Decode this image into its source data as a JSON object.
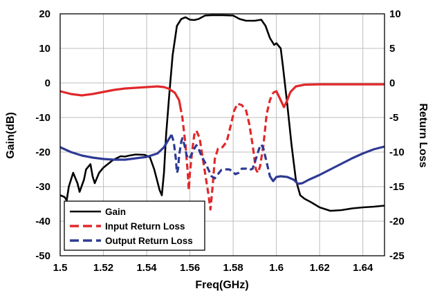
{
  "chart_data": {
    "type": "line",
    "title": "",
    "xlabel": "Freq(GHz)",
    "ylabel_left": "Gain(dB)",
    "ylabel_right": "Return Loss",
    "xlim": [
      1.5,
      1.65
    ],
    "ylim_left": [
      -50,
      20
    ],
    "ylim_right": [
      -25,
      10
    ],
    "x_ticks": [
      "1.5",
      "1.52",
      "1.54",
      "1.56",
      "1.58",
      "1.6",
      "1.62",
      "1.64"
    ],
    "y_left_ticks": [
      "20",
      "10",
      "0",
      "-10",
      "-20",
      "-30",
      "-40",
      "-50"
    ],
    "y_right_ticks": [
      "10",
      "5",
      "0",
      "-5",
      "-10",
      "-15",
      "-20",
      "-25"
    ],
    "grid": true,
    "legend_position": "bottom-left",
    "series": [
      {
        "name": "Gain",
        "axis": "left",
        "color": "#000000",
        "style": "solid",
        "points": [
          [
            1.5,
            -32.5
          ],
          [
            1.502,
            -33
          ],
          [
            1.503,
            -34
          ],
          [
            1.504,
            -30
          ],
          [
            1.506,
            -26
          ],
          [
            1.508,
            -29
          ],
          [
            1.509,
            -31.5
          ],
          [
            1.511,
            -28
          ],
          [
            1.512,
            -25
          ],
          [
            1.514,
            -23.5
          ],
          [
            1.515,
            -27
          ],
          [
            1.516,
            -29
          ],
          [
            1.518,
            -26
          ],
          [
            1.52,
            -24.5
          ],
          [
            1.522,
            -23.5
          ],
          [
            1.524,
            -22.5
          ],
          [
            1.526,
            -21.8
          ],
          [
            1.528,
            -21.2
          ],
          [
            1.53,
            -21.3
          ],
          [
            1.532,
            -21
          ],
          [
            1.535,
            -20.7
          ],
          [
            1.539,
            -20.8
          ],
          [
            1.5415,
            -21.5
          ],
          [
            1.5435,
            -25
          ],
          [
            1.546,
            -31
          ],
          [
            1.547,
            -32.5
          ],
          [
            1.548,
            -26
          ],
          [
            1.549,
            -15
          ],
          [
            1.5505,
            -3
          ],
          [
            1.552,
            8
          ],
          [
            1.554,
            16.5
          ],
          [
            1.556,
            18.5
          ],
          [
            1.558,
            19
          ],
          [
            1.56,
            18.3
          ],
          [
            1.562,
            18.2
          ],
          [
            1.564,
            18.5
          ],
          [
            1.567,
            19.5
          ],
          [
            1.57,
            19.6
          ],
          [
            1.575,
            19.6
          ],
          [
            1.58,
            19.5
          ],
          [
            1.583,
            18.5
          ],
          [
            1.586,
            18
          ],
          [
            1.59,
            18
          ],
          [
            1.593,
            18.3
          ],
          [
            1.595,
            16.5
          ],
          [
            1.597,
            13
          ],
          [
            1.599,
            11
          ],
          [
            1.6,
            11.5
          ],
          [
            1.602,
            10
          ],
          [
            1.603,
            5
          ],
          [
            1.605,
            -6
          ],
          [
            1.607,
            -18
          ],
          [
            1.609,
            -28
          ],
          [
            1.611,
            -32.5
          ],
          [
            1.613,
            -33.5
          ],
          [
            1.616,
            -34.5
          ],
          [
            1.62,
            -36
          ],
          [
            1.625,
            -37
          ],
          [
            1.63,
            -36.8
          ],
          [
            1.635,
            -36.3
          ],
          [
            1.64,
            -36
          ],
          [
            1.645,
            -35.8
          ],
          [
            1.65,
            -35.5
          ]
        ]
      },
      {
        "name": "Input Return Loss",
        "axis": "right",
        "color": "#e0282a",
        "style": "mixed",
        "points": [
          [
            1.5,
            -1.2
          ],
          [
            1.505,
            -1.6
          ],
          [
            1.51,
            -1.8
          ],
          [
            1.515,
            -1.6
          ],
          [
            1.52,
            -1.3
          ],
          [
            1.525,
            -1.0
          ],
          [
            1.53,
            -0.8
          ],
          [
            1.535,
            -0.7
          ],
          [
            1.54,
            -0.6
          ],
          [
            1.545,
            -0.5
          ],
          [
            1.548,
            -0.6
          ],
          [
            1.55,
            -0.8
          ],
          [
            1.553,
            -1.4
          ],
          [
            1.555,
            -2.5
          ],
          [
            1.5565,
            -5
          ],
          [
            1.558,
            -9
          ],
          [
            1.559,
            -13
          ],
          [
            1.5595,
            -15.5
          ],
          [
            1.56,
            -13
          ],
          [
            1.561,
            -10
          ],
          [
            1.562,
            -7.5
          ],
          [
            1.563,
            -6.9
          ],
          [
            1.5645,
            -8
          ],
          [
            1.5655,
            -10
          ],
          [
            1.567,
            -13
          ],
          [
            1.5685,
            -16
          ],
          [
            1.5695,
            -18.3
          ],
          [
            1.5705,
            -15
          ],
          [
            1.5715,
            -11
          ],
          [
            1.573,
            -9.5
          ],
          [
            1.575,
            -9.3
          ],
          [
            1.577,
            -8.5
          ],
          [
            1.579,
            -6
          ],
          [
            1.5805,
            -4
          ],
          [
            1.582,
            -3
          ],
          [
            1.584,
            -3.2
          ],
          [
            1.586,
            -4
          ],
          [
            1.5875,
            -6
          ],
          [
            1.589,
            -9
          ],
          [
            1.5905,
            -12.5
          ],
          [
            1.5915,
            -13
          ],
          [
            1.5925,
            -12
          ],
          [
            1.594,
            -9
          ],
          [
            1.5955,
            -4.5
          ],
          [
            1.597,
            -2.5
          ],
          [
            1.5985,
            -1.4
          ],
          [
            1.6,
            -1.2
          ],
          [
            1.602,
            -2.5
          ],
          [
            1.6035,
            -3.5
          ],
          [
            1.605,
            -2.5
          ],
          [
            1.6065,
            -1.3
          ],
          [
            1.609,
            -0.5
          ],
          [
            1.613,
            -0.25
          ],
          [
            1.62,
            -0.2
          ],
          [
            1.63,
            -0.2
          ],
          [
            1.64,
            -0.2
          ],
          [
            1.65,
            -0.2
          ]
        ]
      },
      {
        "name": "Output Return Loss",
        "axis": "right",
        "color": "#2e3a94",
        "style": "mixed",
        "points": [
          [
            1.5,
            -9.3
          ],
          [
            1.505,
            -10.0
          ],
          [
            1.51,
            -10.5
          ],
          [
            1.515,
            -10.8
          ],
          [
            1.52,
            -11
          ],
          [
            1.525,
            -11.1
          ],
          [
            1.53,
            -11.1
          ],
          [
            1.535,
            -10.9
          ],
          [
            1.54,
            -10.7
          ],
          [
            1.545,
            -10.2
          ],
          [
            1.548,
            -9.3
          ],
          [
            1.5505,
            -8.0
          ],
          [
            1.5515,
            -7.5
          ],
          [
            1.5525,
            -8.5
          ],
          [
            1.5535,
            -11
          ],
          [
            1.554,
            -13
          ],
          [
            1.5545,
            -12.5
          ],
          [
            1.555,
            -10.5
          ],
          [
            1.556,
            -8.5
          ],
          [
            1.5565,
            -8.0
          ],
          [
            1.5575,
            -9
          ],
          [
            1.5585,
            -10.5
          ],
          [
            1.5595,
            -11
          ],
          [
            1.5605,
            -10.5
          ],
          [
            1.5615,
            -9.8
          ],
          [
            1.563,
            -9
          ],
          [
            1.564,
            -9.5
          ],
          [
            1.5655,
            -10.7
          ],
          [
            1.567,
            -11.5
          ],
          [
            1.5685,
            -12.5
          ],
          [
            1.57,
            -13.5
          ],
          [
            1.5715,
            -13.8
          ],
          [
            1.573,
            -13.2
          ],
          [
            1.5745,
            -12.6
          ],
          [
            1.576,
            -12.5
          ],
          [
            1.578,
            -12.5
          ],
          [
            1.5795,
            -12.7
          ],
          [
            1.581,
            -13.2
          ],
          [
            1.5825,
            -13.0
          ],
          [
            1.584,
            -12.4
          ],
          [
            1.586,
            -12.4
          ],
          [
            1.5875,
            -12.6
          ],
          [
            1.589,
            -12.4
          ],
          [
            1.5905,
            -11
          ],
          [
            1.592,
            -9.5
          ],
          [
            1.593,
            -8.9
          ],
          [
            1.594,
            -9.5
          ],
          [
            1.5955,
            -11.5
          ],
          [
            1.597,
            -13.5
          ],
          [
            1.5985,
            -14.2
          ],
          [
            1.6,
            -13.6
          ],
          [
            1.602,
            -13.5
          ],
          [
            1.605,
            -13.6
          ],
          [
            1.608,
            -14.0
          ],
          [
            1.61,
            -14.6
          ],
          [
            1.612,
            -14.5
          ],
          [
            1.615,
            -14.0
          ],
          [
            1.62,
            -13.3
          ],
          [
            1.625,
            -12.5
          ],
          [
            1.63,
            -11.7
          ],
          [
            1.635,
            -10.9
          ],
          [
            1.64,
            -10.2
          ],
          [
            1.645,
            -9.6
          ],
          [
            1.65,
            -9.2
          ]
        ]
      }
    ],
    "dashed_ranges": [
      {
        "series": 1,
        "x": [
          1.5555,
          1.5985
        ]
      },
      {
        "series": 2,
        "x": [
          1.5515,
          1.5975
        ]
      }
    ]
  }
}
